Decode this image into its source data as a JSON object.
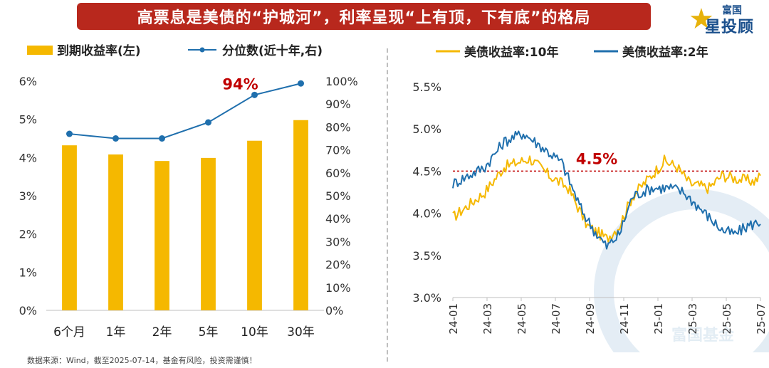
{
  "header": {
    "title": "高票息是美债的“护城河”，利率呈现“上有顶，下有底”的格局",
    "logo_name": "富国",
    "logo_sub": "星投顾"
  },
  "watermark": "富国基金",
  "footer": {
    "source": "数据来源：Wind，截至2025-07-14，基金有风险，投资需谨慎！"
  },
  "chart_data": [
    {
      "type": "bar",
      "categories": [
        "6个月",
        "1年",
        "2年",
        "5年",
        "10年",
        "30年"
      ],
      "series": [
        {
          "name": "到期收益率(左)",
          "type": "bar",
          "axis": "left",
          "color": "#f5b800",
          "values": [
            4.32,
            4.08,
            3.91,
            3.99,
            4.44,
            4.98
          ]
        },
        {
          "name": "分位数(近十年,右)",
          "type": "line",
          "axis": "right",
          "color": "#1f6fad",
          "values": [
            77,
            75,
            75,
            82,
            94,
            99
          ]
        }
      ],
      "yleft": {
        "min": 0,
        "max": 6,
        "ticks": [
          "0%",
          "1%",
          "2%",
          "3%",
          "4%",
          "5%",
          "6%"
        ]
      },
      "yright": {
        "min": 0,
        "max": 100,
        "ticks": [
          "0%",
          "10%",
          "20%",
          "30%",
          "40%",
          "50%",
          "60%",
          "70%",
          "80%",
          "90%",
          "100%"
        ]
      },
      "annotation": {
        "text": "94%",
        "category": "10年",
        "color": "#c00000"
      },
      "legend_position": "top",
      "grid": false
    },
    {
      "type": "line",
      "x_labels": [
        "24-01",
        "24-03",
        "24-05",
        "24-07",
        "24-09",
        "24-11",
        "25-01",
        "25-03",
        "25-05",
        "25-07"
      ],
      "series": [
        {
          "name": "美债收益率:10年",
          "color": "#f5b800",
          "anchors": [
            [
              0,
              3.95
            ],
            [
              5,
              4.25
            ],
            [
              8,
              4.55
            ],
            [
              12,
              4.65
            ],
            [
              15,
              4.45
            ],
            [
              18,
              4.3
            ],
            [
              21,
              3.85
            ],
            [
              24,
              3.7
            ],
            [
              26,
              3.85
            ],
            [
              28,
              4.2
            ],
            [
              31,
              4.45
            ],
            [
              33,
              4.62
            ],
            [
              35,
              4.55
            ],
            [
              37,
              4.35
            ],
            [
              40,
              4.3
            ],
            [
              42,
              4.45
            ],
            [
              45,
              4.4
            ],
            [
              47,
              4.38
            ],
            [
              48,
              4.44
            ]
          ]
        },
        {
          "name": "美债收益率:2年",
          "color": "#1f6fad",
          "anchors": [
            [
              0,
              4.35
            ],
            [
              5,
              4.55
            ],
            [
              8,
              4.85
            ],
            [
              11,
              4.95
            ],
            [
              14,
              4.78
            ],
            [
              17,
              4.6
            ],
            [
              20,
              4.05
            ],
            [
              22,
              3.8
            ],
            [
              24,
              3.6
            ],
            [
              26,
              3.75
            ],
            [
              28,
              4.2
            ],
            [
              31,
              4.3
            ],
            [
              34,
              4.3
            ],
            [
              36,
              4.25
            ],
            [
              38,
              4.1
            ],
            [
              40,
              3.95
            ],
            [
              42,
              3.8
            ],
            [
              44,
              3.75
            ],
            [
              46,
              3.85
            ],
            [
              48,
              3.9
            ]
          ]
        }
      ],
      "yaxis": {
        "min": 3.0,
        "max": 5.5,
        "ticks": [
          "3.0%",
          "3.5%",
          "4.0%",
          "4.5%",
          "5.0%",
          "5.5%"
        ]
      },
      "reference_line": {
        "value": 4.5,
        "label": "4.5%",
        "color": "#c00000"
      },
      "legend_position": "top",
      "grid": false
    }
  ]
}
